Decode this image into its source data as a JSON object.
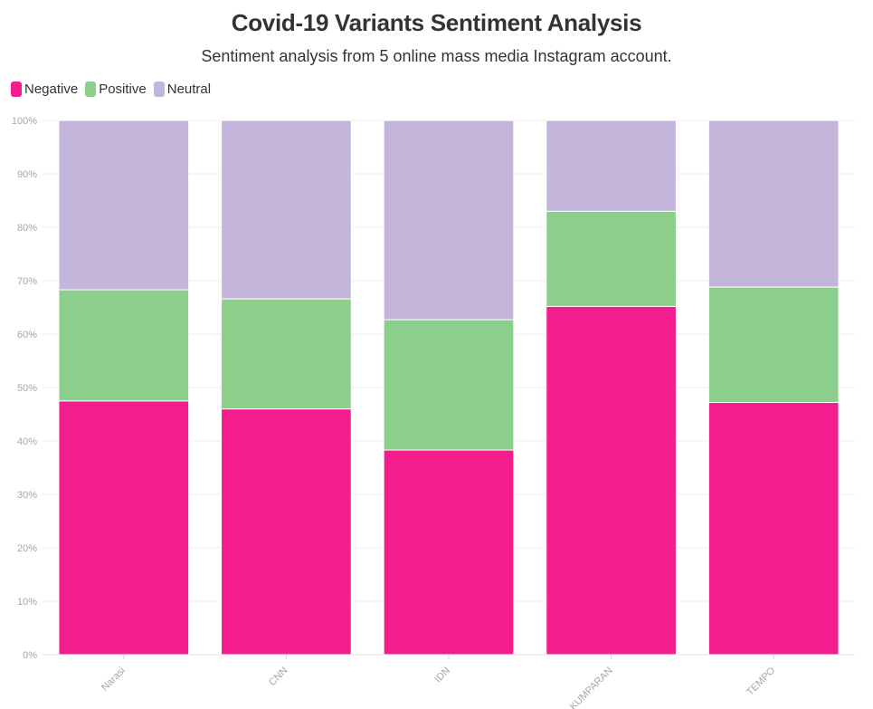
{
  "title": "Covid-19 Variants Sentiment Analysis",
  "subtitle": "Sentiment analysis from 5 online mass media Instagram account.",
  "legend": [
    {
      "label": "Negative",
      "color": "#f41d8d"
    },
    {
      "label": "Positive",
      "color": "#8ccf8c"
    },
    {
      "label": "Neutral",
      "color": "#c4b6da"
    }
  ],
  "chart_data": {
    "type": "bar",
    "stacked": true,
    "categories": [
      "Narasi",
      "CNN",
      "IDN",
      "KUMPARAN",
      "TEMPO"
    ],
    "series": [
      {
        "name": "Negative",
        "color": "#f41d8d",
        "values": [
          47.5,
          46.0,
          38.3,
          65.2,
          47.2
        ]
      },
      {
        "name": "Positive",
        "color": "#8ccf8c",
        "values": [
          20.8,
          20.6,
          24.4,
          17.8,
          21.6
        ]
      },
      {
        "name": "Neutral",
        "color": "#c4b6da",
        "values": [
          31.7,
          33.4,
          37.3,
          17.0,
          31.2
        ]
      }
    ],
    "ylim": [
      0,
      100
    ],
    "yticks": [
      "0%",
      "10%",
      "20%",
      "30%",
      "40%",
      "50%",
      "60%",
      "70%",
      "80%",
      "90%",
      "100%"
    ],
    "grid": true,
    "legend_position": "top-left"
  }
}
